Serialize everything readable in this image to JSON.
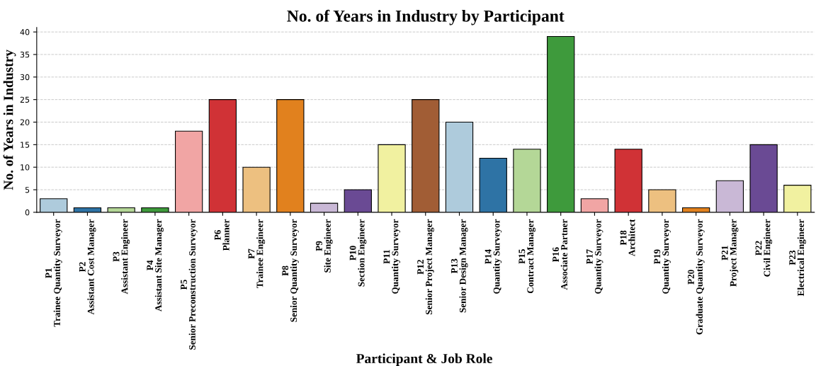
{
  "chart_data": {
    "type": "bar",
    "title": "No. of Years in Industry by Participant",
    "xlabel": "Participant & Job Role",
    "ylabel": "No. of Years in Industry",
    "categories": [
      "P1\nTrainee Quantity Surveyor",
      "P2\nAssistant Cost Manager",
      "P3\nAssistant Engineer",
      "P4\nAssistant Site Manager",
      "P5\nSenior Preconstruction Surveyor",
      "P6\nPlanner",
      "P7\nTrainee Engineer",
      "P8\nSenior Quantity Surveyor",
      "P9\nSite Engineer",
      "P10\nSection Engineer",
      "P11\nQuantity Surveyor",
      "P12\nSenior Project Manager",
      "P13\nSenior Design Manager",
      "P14\nQuantity Surveyor",
      "P15\nContract Manager",
      "P16\nAssociate Partner",
      "P17\nQuantity Surveyor",
      "P18\nArchitect",
      "P19\nQuantity Surveyor",
      "P20\nGraduate Quantity Surveyor",
      "P21\nProject Manager",
      "P22\nCivil Engineer",
      "P23\nElectrical Engineer"
    ],
    "values": [
      3,
      1,
      1,
      1,
      18,
      25,
      10,
      25,
      2,
      5,
      15,
      25,
      20,
      12,
      14,
      39,
      3,
      14,
      5,
      1,
      7,
      15,
      6
    ],
    "colors": [
      "#aecbdc",
      "#2e73a5",
      "#b4d797",
      "#3e9a3c",
      "#f1a5a4",
      "#d03236",
      "#edc080",
      "#e1811e",
      "#c9b8d6",
      "#6a4a94",
      "#f1f1a0",
      "#a15d35",
      "#aecbdc",
      "#2e73a5",
      "#b4d797",
      "#3e9a3c",
      "#f1a5a4",
      "#d03236",
      "#edc080",
      "#e1811e",
      "#c9b8d6",
      "#6a4a94",
      "#f1f1a0"
    ],
    "ylim": [
      0,
      41
    ],
    "yticks": [
      0,
      5,
      10,
      15,
      20,
      25,
      30,
      35,
      40
    ],
    "grid": "y"
  }
}
